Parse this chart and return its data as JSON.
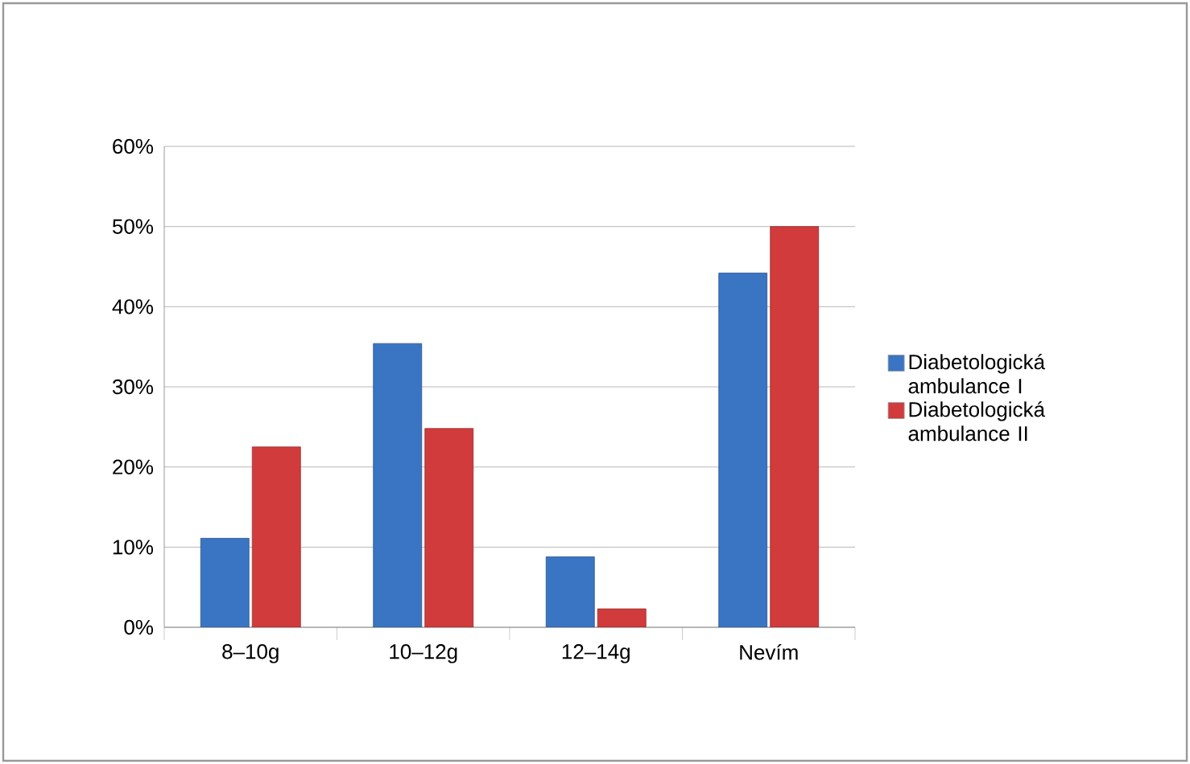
{
  "chart_data": {
    "type": "bar",
    "categories": [
      "8–10g",
      "10–12g",
      "12–14g",
      "Nevím"
    ],
    "series": [
      {
        "name": "Diabetologická ambulance I",
        "color": "#3a75c4",
        "values": [
          11.1,
          35.4,
          8.8,
          44.2
        ]
      },
      {
        "name": "Diabetologická ambulance II",
        "color": "#d13b3b",
        "values": [
          22.5,
          24.8,
          2.3,
          50
        ]
      }
    ],
    "ylim": [
      0,
      60
    ],
    "yticks": [
      {
        "value": 0,
        "label": "0%"
      },
      {
        "value": 10,
        "label": "10%"
      },
      {
        "value": 20,
        "label": "20%"
      },
      {
        "value": 30,
        "label": "30%"
      },
      {
        "value": 40,
        "label": "40%"
      },
      {
        "value": 50,
        "label": "50%"
      },
      {
        "value": 60,
        "label": "60%"
      }
    ],
    "grid": "y",
    "legend": "right"
  }
}
